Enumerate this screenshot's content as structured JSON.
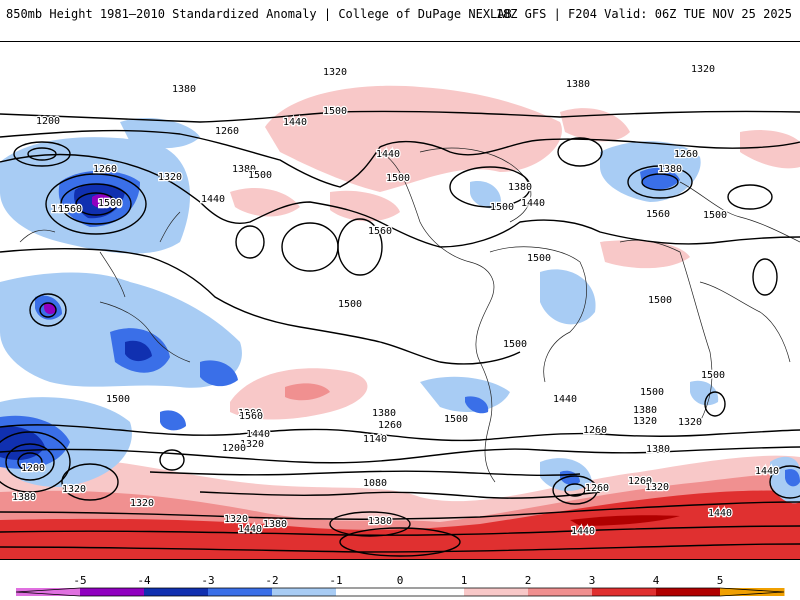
{
  "header": {
    "title": "850mb Height 1981–2010 Standardized Anomaly | College of DuPage NEXLAB",
    "run": "18Z GFS | F204 Valid: 06Z TUE NOV 25 2025"
  },
  "contour_labels": [
    "1320",
    "1380",
    "1320",
    "1380",
    "1200",
    "1260",
    "1440",
    "1500",
    "1380",
    "1320",
    "1260",
    "1560",
    "1500",
    "1440",
    "1500",
    "1560",
    "1500",
    "1440",
    "1380",
    "1500",
    "1440",
    "1260",
    "1380",
    "1560",
    "1500",
    "1440",
    "1560",
    "1500",
    "1500",
    "1500",
    "1500",
    "1500",
    "1500",
    "1440",
    "1320",
    "1380",
    "1260",
    "1500",
    "1200",
    "1560",
    "1380",
    "1260",
    "1440",
    "1320",
    "1140",
    "1500",
    "1200",
    "1080",
    "1260",
    "1440",
    "1380",
    "1320",
    "1200",
    "1500",
    "1320",
    "1380",
    "1320",
    "1380",
    "1260",
    "1320",
    "1440",
    "1320",
    "1380",
    "1440",
    "1440"
  ],
  "colorbar": {
    "ticks": [
      "-5",
      "-4",
      "-3",
      "-2",
      "-1",
      "0",
      "1",
      "2",
      "3",
      "4",
      "5"
    ],
    "colors": {
      "n5": "#e070e0",
      "n4": "#9000c0",
      "n3": "#1030b0",
      "n2": "#3a6fe8",
      "n1": "#a8ccf4",
      "z": "#ffffff",
      "p1": "#f8c8c8",
      "p2": "#f09090",
      "p3": "#e03030",
      "p4": "#b00000",
      "p5": "#f0a000"
    }
  }
}
